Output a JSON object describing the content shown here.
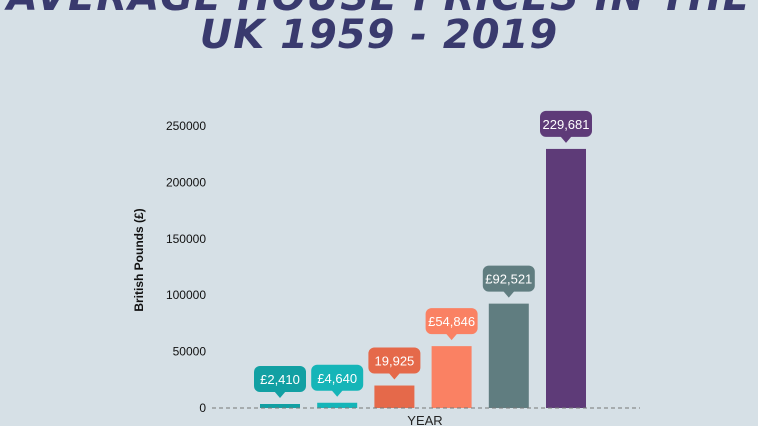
{
  "chart_data": {
    "type": "bar",
    "title_lines": [
      "AVERAGE HOUSE PRICES IN THE",
      "UK 1959 - 2019"
    ],
    "xlabel": "YEAR",
    "ylabel": "British Pounds (£)",
    "ylim": [
      0,
      250000
    ],
    "yticks": [
      0,
      50000,
      100000,
      150000,
      200000,
      250000
    ],
    "values": [
      2410,
      4640,
      19925,
      54846,
      92521,
      229681
    ],
    "data_labels": [
      "£2,410",
      "£4,640",
      "19,925",
      "£54,846",
      "£92,521",
      "229,681"
    ],
    "colors": [
      "#12a0a3",
      "#15b5b8",
      "#e5694a",
      "#fa8163",
      "#607d80",
      "#5e3b78"
    ],
    "grid": false,
    "background": "#d6e0e6",
    "title_color": "#393a6e"
  }
}
